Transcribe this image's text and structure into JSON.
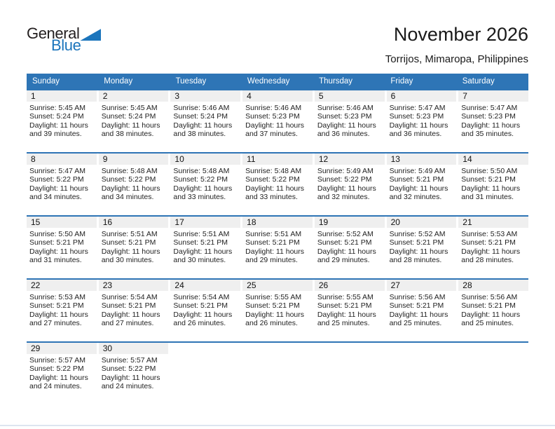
{
  "logo": {
    "part1": "General",
    "part2": "Blue"
  },
  "header": {
    "title": "November 2026",
    "subtitle": "Torrijos, Mimaropa, Philippines"
  },
  "colors": {
    "header_bg": "#2E75B6",
    "week_separator": "#2E74B5",
    "day_band_bg": "#EFEFEF",
    "logo_blue": "#1C75BC",
    "bottom_rule": "#DDE5F0"
  },
  "calendar": {
    "day_headers": [
      "Sunday",
      "Monday",
      "Tuesday",
      "Wednesday",
      "Thursday",
      "Friday",
      "Saturday"
    ],
    "weeks": [
      [
        {
          "day": "1",
          "sunrise": "Sunrise: 5:45 AM",
          "sunset": "Sunset: 5:24 PM",
          "daylight1": "Daylight: 11 hours",
          "daylight2": "and 39 minutes."
        },
        {
          "day": "2",
          "sunrise": "Sunrise: 5:45 AM",
          "sunset": "Sunset: 5:24 PM",
          "daylight1": "Daylight: 11 hours",
          "daylight2": "and 38 minutes."
        },
        {
          "day": "3",
          "sunrise": "Sunrise: 5:46 AM",
          "sunset": "Sunset: 5:24 PM",
          "daylight1": "Daylight: 11 hours",
          "daylight2": "and 38 minutes."
        },
        {
          "day": "4",
          "sunrise": "Sunrise: 5:46 AM",
          "sunset": "Sunset: 5:23 PM",
          "daylight1": "Daylight: 11 hours",
          "daylight2": "and 37 minutes."
        },
        {
          "day": "5",
          "sunrise": "Sunrise: 5:46 AM",
          "sunset": "Sunset: 5:23 PM",
          "daylight1": "Daylight: 11 hours",
          "daylight2": "and 36 minutes."
        },
        {
          "day": "6",
          "sunrise": "Sunrise: 5:47 AM",
          "sunset": "Sunset: 5:23 PM",
          "daylight1": "Daylight: 11 hours",
          "daylight2": "and 36 minutes."
        },
        {
          "day": "7",
          "sunrise": "Sunrise: 5:47 AM",
          "sunset": "Sunset: 5:23 PM",
          "daylight1": "Daylight: 11 hours",
          "daylight2": "and 35 minutes."
        }
      ],
      [
        {
          "day": "8",
          "sunrise": "Sunrise: 5:47 AM",
          "sunset": "Sunset: 5:22 PM",
          "daylight1": "Daylight: 11 hours",
          "daylight2": "and 34 minutes."
        },
        {
          "day": "9",
          "sunrise": "Sunrise: 5:48 AM",
          "sunset": "Sunset: 5:22 PM",
          "daylight1": "Daylight: 11 hours",
          "daylight2": "and 34 minutes."
        },
        {
          "day": "10",
          "sunrise": "Sunrise: 5:48 AM",
          "sunset": "Sunset: 5:22 PM",
          "daylight1": "Daylight: 11 hours",
          "daylight2": "and 33 minutes."
        },
        {
          "day": "11",
          "sunrise": "Sunrise: 5:48 AM",
          "sunset": "Sunset: 5:22 PM",
          "daylight1": "Daylight: 11 hours",
          "daylight2": "and 33 minutes."
        },
        {
          "day": "12",
          "sunrise": "Sunrise: 5:49 AM",
          "sunset": "Sunset: 5:22 PM",
          "daylight1": "Daylight: 11 hours",
          "daylight2": "and 32 minutes."
        },
        {
          "day": "13",
          "sunrise": "Sunrise: 5:49 AM",
          "sunset": "Sunset: 5:21 PM",
          "daylight1": "Daylight: 11 hours",
          "daylight2": "and 32 minutes."
        },
        {
          "day": "14",
          "sunrise": "Sunrise: 5:50 AM",
          "sunset": "Sunset: 5:21 PM",
          "daylight1": "Daylight: 11 hours",
          "daylight2": "and 31 minutes."
        }
      ],
      [
        {
          "day": "15",
          "sunrise": "Sunrise: 5:50 AM",
          "sunset": "Sunset: 5:21 PM",
          "daylight1": "Daylight: 11 hours",
          "daylight2": "and 31 minutes."
        },
        {
          "day": "16",
          "sunrise": "Sunrise: 5:51 AM",
          "sunset": "Sunset: 5:21 PM",
          "daylight1": "Daylight: 11 hours",
          "daylight2": "and 30 minutes."
        },
        {
          "day": "17",
          "sunrise": "Sunrise: 5:51 AM",
          "sunset": "Sunset: 5:21 PM",
          "daylight1": "Daylight: 11 hours",
          "daylight2": "and 30 minutes."
        },
        {
          "day": "18",
          "sunrise": "Sunrise: 5:51 AM",
          "sunset": "Sunset: 5:21 PM",
          "daylight1": "Daylight: 11 hours",
          "daylight2": "and 29 minutes."
        },
        {
          "day": "19",
          "sunrise": "Sunrise: 5:52 AM",
          "sunset": "Sunset: 5:21 PM",
          "daylight1": "Daylight: 11 hours",
          "daylight2": "and 29 minutes."
        },
        {
          "day": "20",
          "sunrise": "Sunrise: 5:52 AM",
          "sunset": "Sunset: 5:21 PM",
          "daylight1": "Daylight: 11 hours",
          "daylight2": "and 28 minutes."
        },
        {
          "day": "21",
          "sunrise": "Sunrise: 5:53 AM",
          "sunset": "Sunset: 5:21 PM",
          "daylight1": "Daylight: 11 hours",
          "daylight2": "and 28 minutes."
        }
      ],
      [
        {
          "day": "22",
          "sunrise": "Sunrise: 5:53 AM",
          "sunset": "Sunset: 5:21 PM",
          "daylight1": "Daylight: 11 hours",
          "daylight2": "and 27 minutes."
        },
        {
          "day": "23",
          "sunrise": "Sunrise: 5:54 AM",
          "sunset": "Sunset: 5:21 PM",
          "daylight1": "Daylight: 11 hours",
          "daylight2": "and 27 minutes."
        },
        {
          "day": "24",
          "sunrise": "Sunrise: 5:54 AM",
          "sunset": "Sunset: 5:21 PM",
          "daylight1": "Daylight: 11 hours",
          "daylight2": "and 26 minutes."
        },
        {
          "day": "25",
          "sunrise": "Sunrise: 5:55 AM",
          "sunset": "Sunset: 5:21 PM",
          "daylight1": "Daylight: 11 hours",
          "daylight2": "and 26 minutes."
        },
        {
          "day": "26",
          "sunrise": "Sunrise: 5:55 AM",
          "sunset": "Sunset: 5:21 PM",
          "daylight1": "Daylight: 11 hours",
          "daylight2": "and 25 minutes."
        },
        {
          "day": "27",
          "sunrise": "Sunrise: 5:56 AM",
          "sunset": "Sunset: 5:21 PM",
          "daylight1": "Daylight: 11 hours",
          "daylight2": "and 25 minutes."
        },
        {
          "day": "28",
          "sunrise": "Sunrise: 5:56 AM",
          "sunset": "Sunset: 5:21 PM",
          "daylight1": "Daylight: 11 hours",
          "daylight2": "and 25 minutes."
        }
      ],
      [
        {
          "day": "29",
          "sunrise": "Sunrise: 5:57 AM",
          "sunset": "Sunset: 5:22 PM",
          "daylight1": "Daylight: 11 hours",
          "daylight2": "and 24 minutes."
        },
        {
          "day": "30",
          "sunrise": "Sunrise: 5:57 AM",
          "sunset": "Sunset: 5:22 PM",
          "daylight1": "Daylight: 11 hours",
          "daylight2": "and 24 minutes."
        },
        null,
        null,
        null,
        null,
        null
      ]
    ]
  }
}
